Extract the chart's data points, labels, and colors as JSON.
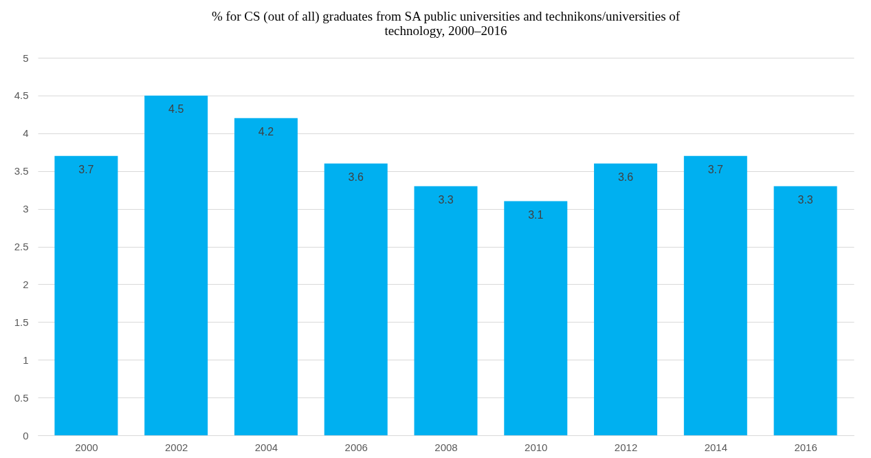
{
  "chart_data": {
    "type": "bar",
    "title": "% for CS (out of all) graduates from SA public universities and technikons/universities of technology, 2000–2016",
    "categories": [
      "2000",
      "2002",
      "2004",
      "2006",
      "2008",
      "2010",
      "2012",
      "2014",
      "2016"
    ],
    "values": [
      3.7,
      4.5,
      4.2,
      3.6,
      3.3,
      3.1,
      3.6,
      3.7,
      3.3
    ],
    "color": "#00b0f0",
    "ylim": [
      0,
      5
    ],
    "yticks": [
      0,
      0.5,
      1,
      1.5,
      2,
      2.5,
      3,
      3.5,
      4,
      4.5,
      5
    ],
    "grid": "y",
    "data_labels": true
  }
}
